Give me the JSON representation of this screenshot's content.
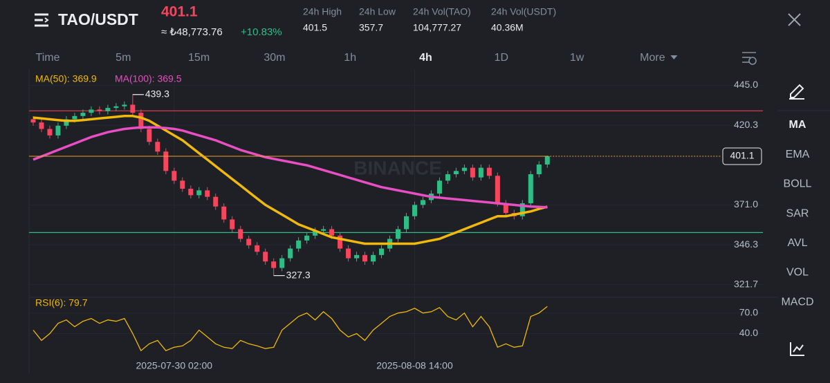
{
  "header": {
    "pair": "TAO/USDT",
    "price": "401.1",
    "price_converted": "≈ ₺48,773.76",
    "change": "+10.83%",
    "stats": [
      {
        "label": "24h High",
        "value": "401.5"
      },
      {
        "label": "24h Low",
        "value": "357.7"
      },
      {
        "label": "24h Vol(TAO)",
        "value": "104,777.27"
      },
      {
        "label": "24h Vol(USDT)",
        "value": "40.36M"
      }
    ]
  },
  "tabs": {
    "items": [
      "Time",
      "5m",
      "15m",
      "30m",
      "1h",
      "4h",
      "1D",
      "1w",
      "More"
    ],
    "active": 5
  },
  "indicators": {
    "items": [
      "MA",
      "EMA",
      "BOLL",
      "SAR",
      "AVL",
      "VOL",
      "MACD"
    ],
    "active": 0
  },
  "chart_data": {
    "type": "candlestick",
    "watermark": "BINANCE",
    "up_color": "#2ebd85",
    "down_color": "#f6465d",
    "ylim": [
      316,
      455
    ],
    "yticks": [
      {
        "value": 445,
        "label": "445.0"
      },
      {
        "value": 420.3,
        "label": "420.3"
      },
      {
        "value": 371,
        "label": "371.0"
      },
      {
        "value": 346.3,
        "label": "346.3"
      },
      {
        "value": 321.7,
        "label": "321.7"
      }
    ],
    "xlim": [
      -0.5,
      88
    ],
    "xticks": [
      {
        "value": 17,
        "label": "2025-07-30 02:00"
      },
      {
        "value": 46,
        "label": "2025-08-08 14:00"
      }
    ],
    "candles": {
      "open": [
        424,
        422,
        418,
        414,
        420,
        424,
        426,
        428,
        430,
        429,
        431,
        432,
        433,
        428,
        418,
        410,
        404,
        392,
        386,
        381,
        377,
        380,
        376,
        370,
        362,
        356,
        350,
        346,
        342,
        336,
        332,
        338,
        344,
        349,
        352,
        355,
        356,
        352,
        344,
        338,
        340,
        336,
        340,
        344,
        350,
        356,
        364,
        371,
        374,
        378,
        386,
        390,
        392,
        394,
        388,
        394,
        389,
        372,
        366,
        364,
        372,
        390,
        396
      ],
      "high": [
        426,
        424,
        420,
        422,
        426,
        428,
        430,
        432,
        432,
        433,
        434,
        435,
        439.3,
        430,
        420,
        412,
        406,
        394,
        388,
        383,
        382,
        382,
        378,
        372,
        364,
        358,
        352,
        348,
        344,
        338,
        340,
        346,
        351,
        354,
        357,
        358,
        358,
        354,
        346,
        342,
        342,
        342,
        346,
        352,
        358,
        366,
        373,
        376,
        380,
        388,
        392,
        394,
        396,
        396,
        396,
        396,
        391,
        374,
        368,
        374,
        392,
        398,
        401.5
      ],
      "low": [
        420,
        416,
        412,
        412,
        418,
        422,
        424,
        426,
        427,
        427,
        429,
        430,
        426,
        416,
        408,
        402,
        390,
        384,
        379,
        375,
        375,
        374,
        368,
        360,
        354,
        348,
        344,
        340,
        334,
        327.3,
        330,
        336,
        342,
        347,
        350,
        353,
        350,
        342,
        336,
        336,
        334,
        334,
        338,
        342,
        348,
        354,
        362,
        369,
        372,
        376,
        384,
        388,
        390,
        386,
        386,
        387,
        370,
        364,
        362,
        362,
        370,
        388,
        394
      ],
      "close": [
        422,
        418,
        414,
        420,
        424,
        426,
        428,
        430,
        429,
        431,
        432,
        433,
        428,
        418,
        410,
        404,
        392,
        386,
        381,
        377,
        380,
        376,
        370,
        362,
        356,
        350,
        346,
        342,
        336,
        332,
        338,
        344,
        349,
        352,
        355,
        356,
        352,
        344,
        338,
        340,
        336,
        340,
        344,
        350,
        356,
        364,
        371,
        374,
        378,
        386,
        390,
        392,
        394,
        388,
        394,
        389,
        372,
        366,
        364,
        372,
        390,
        396,
        401.1
      ]
    },
    "series": [
      {
        "name": "MA(50): 369.9",
        "color": "#f0b90b",
        "values": [
          425,
          424.5,
          424,
          423.5,
          423,
          423,
          423.5,
          424,
          424.5,
          425,
          425.5,
          426,
          426,
          425,
          423,
          420,
          417,
          414,
          411,
          407,
          403,
          399,
          395,
          391,
          387,
          383,
          379,
          375,
          371,
          368,
          365,
          362,
          359,
          357,
          355,
          353,
          351,
          350,
          349,
          348,
          347,
          347,
          347,
          347,
          347,
          347,
          347,
          348,
          349,
          350,
          352,
          354,
          356,
          358,
          360,
          362,
          364,
          364,
          365,
          366,
          367,
          368.5,
          369.9
        ]
      },
      {
        "name": "MA(100): 369.5",
        "color": "#e84fc2",
        "values": [
          399,
          401,
          403,
          405,
          407,
          409,
          411,
          413,
          414.5,
          416,
          417,
          418,
          418.5,
          419,
          419,
          419,
          418.5,
          418,
          417,
          415.5,
          414,
          412.5,
          411,
          409,
          407,
          405,
          403.5,
          402,
          400.5,
          399.5,
          398.5,
          397.5,
          396.5,
          395.5,
          394,
          392.5,
          391,
          389.5,
          388,
          386.5,
          385,
          383.5,
          382,
          381,
          380,
          379,
          378,
          377,
          376,
          375.5,
          375,
          374.5,
          374,
          373.5,
          373,
          372.5,
          372,
          371.5,
          371,
          370.5,
          370,
          369.8,
          369.5
        ]
      }
    ],
    "annotations": [
      {
        "text": "439.3",
        "index": 12,
        "value": 439.3
      },
      {
        "text": "327.3",
        "index": 29,
        "value": 327.3
      }
    ],
    "hlines": [
      {
        "value": 429.2,
        "color": "#e0434f"
      },
      {
        "value": 353.9,
        "color": "#2ebd85"
      }
    ],
    "last_price": 401.1,
    "last_price_color": "#f0a030",
    "rsi": {
      "name": "RSI(6): 79.7",
      "color": "#f0b90b",
      "ylim": [
        -3,
        85
      ],
      "yticks": [
        {
          "value": 70,
          "label": "70.0"
        },
        {
          "value": 40,
          "label": "40.0"
        }
      ],
      "values": [
        45,
        30,
        40,
        55,
        60,
        50,
        58,
        62,
        55,
        60,
        58,
        62,
        40,
        15,
        25,
        30,
        15,
        20,
        22,
        30,
        45,
        35,
        25,
        20,
        18,
        30,
        25,
        22,
        18,
        20,
        45,
        55,
        65,
        70,
        60,
        72,
        62,
        45,
        35,
        40,
        30,
        45,
        55,
        65,
        70,
        72,
        77,
        70,
        72,
        78,
        65,
        60,
        70,
        50,
        65,
        50,
        20,
        25,
        20,
        22,
        65,
        70,
        79.7
      ]
    }
  }
}
